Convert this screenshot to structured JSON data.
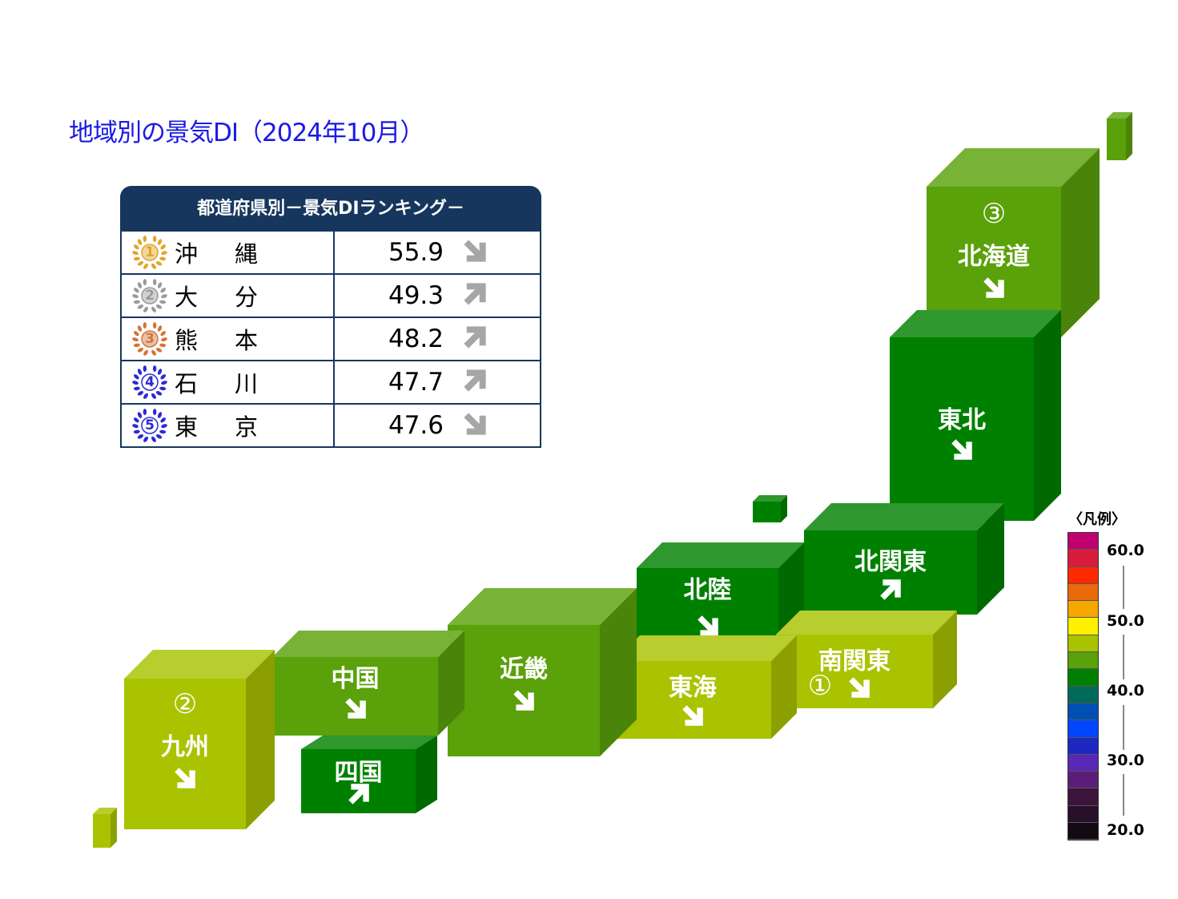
{
  "title": "地域別の景気DI（2024年10月）",
  "ranking": {
    "header": "都道府県別－景気DIランキング－",
    "rows": [
      {
        "rank": "1",
        "name": "沖縄",
        "value": "55.9",
        "trend": "down",
        "medal_color": "#e0a62a"
      },
      {
        "rank": "2",
        "name": "大分",
        "value": "49.3",
        "trend": "up",
        "medal_color": "#9a9a9a"
      },
      {
        "rank": "3",
        "name": "熊本",
        "value": "48.2",
        "trend": "up",
        "medal_color": "#d2753a"
      },
      {
        "rank": "4",
        "name": "石川",
        "value": "47.7",
        "trend": "up",
        "medal_color": "#2a2ad4"
      },
      {
        "rank": "5",
        "name": "東京",
        "value": "47.6",
        "trend": "down",
        "medal_color": "#2a2ad4"
      }
    ]
  },
  "regions": {
    "hokkaido": {
      "label": "北海道",
      "rank": "③",
      "trend": "down",
      "color": "#5aa10a"
    },
    "tohoku": {
      "label": "東北",
      "trend": "down",
      "color": "#008000"
    },
    "kitakanto": {
      "label": "北関東",
      "trend": "up",
      "color": "#008000"
    },
    "minamikanto": {
      "label": "南関東",
      "rank": "①",
      "trend": "down",
      "color": "#a9c300"
    },
    "hokuriku": {
      "label": "北陸",
      "trend": "down",
      "color": "#008000"
    },
    "tokai": {
      "label": "東海",
      "trend": "down",
      "color": "#a9c300"
    },
    "kinki": {
      "label": "近畿",
      "trend": "down",
      "color": "#5aa10a"
    },
    "chugoku": {
      "label": "中国",
      "trend": "down",
      "color": "#5aa10a"
    },
    "shikoku": {
      "label": "四国",
      "trend": "up",
      "color": "#008000"
    },
    "kyushu": {
      "label": "九州",
      "rank": "②",
      "trend": "down",
      "color": "#a9c300"
    }
  },
  "legend": {
    "title": "〈凡例〉",
    "ticks": [
      "60.0",
      "50.0",
      "40.0",
      "30.0",
      "20.0"
    ],
    "colors": [
      "#c0006e",
      "#d81c3c",
      "#ff2a00",
      "#e86a0a",
      "#f7a600",
      "#fff000",
      "#a9c300",
      "#5aa10a",
      "#008000",
      "#006a5a",
      "#0050b4",
      "#0046ff",
      "#1e28be",
      "#5a28b4",
      "#5a1e78",
      "#3c143c",
      "#28102a",
      "#140a14"
    ]
  }
}
